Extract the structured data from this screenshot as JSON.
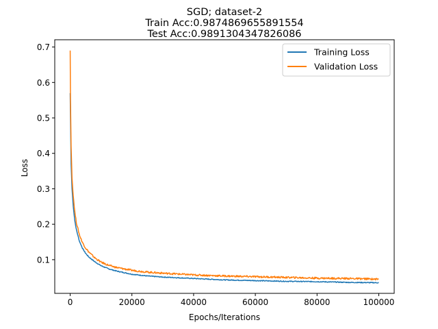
{
  "chart_data": {
    "type": "line",
    "title_lines": [
      "SGD; dataset-2",
      "Train Acc:0.9874869655891554",
      "Test Acc:0.9891304347826086"
    ],
    "xlabel": "Epochs/Iterations",
    "ylabel": "Loss",
    "xlim": [
      -5000,
      105000
    ],
    "ylim": [
      0.005,
      0.7205
    ],
    "xticks": [
      0,
      20000,
      40000,
      60000,
      80000,
      100000
    ],
    "xtick_labels": [
      "0",
      "20000",
      "40000",
      "60000",
      "80000",
      "100000"
    ],
    "yticks": [
      0.1,
      0.2,
      0.3,
      0.4,
      0.5,
      0.6,
      0.7
    ],
    "ytick_labels": [
      "0.1",
      "0.2",
      "0.3",
      "0.4",
      "0.5",
      "0.6",
      "0.7"
    ],
    "legend_position": "top-right",
    "grid": false,
    "series": [
      {
        "name": "Training Loss",
        "color": "#1f77b4",
        "x": [
          0,
          100,
          300,
          600,
          1000,
          1500,
          2000,
          3000,
          4000,
          5000,
          6000,
          8000,
          10000,
          12500,
          15000,
          20000,
          25000,
          30000,
          40000,
          50000,
          60000,
          70000,
          80000,
          90000,
          100000
        ],
        "y": [
          0.57,
          0.5,
          0.37,
          0.3,
          0.25,
          0.21,
          0.185,
          0.152,
          0.132,
          0.118,
          0.108,
          0.094,
          0.083,
          0.074,
          0.068,
          0.059,
          0.054,
          0.051,
          0.047,
          0.043,
          0.041,
          0.039,
          0.038,
          0.036,
          0.035
        ]
      },
      {
        "name": "Validation Loss",
        "color": "#ff7f0e",
        "x": [
          0,
          100,
          300,
          600,
          1000,
          1500,
          2000,
          3000,
          4000,
          5000,
          6000,
          8000,
          10000,
          12500,
          15000,
          20000,
          25000,
          30000,
          40000,
          50000,
          60000,
          70000,
          80000,
          90000,
          100000
        ],
        "y": [
          0.69,
          0.55,
          0.42,
          0.33,
          0.28,
          0.235,
          0.205,
          0.17,
          0.148,
          0.133,
          0.122,
          0.105,
          0.093,
          0.084,
          0.078,
          0.07,
          0.065,
          0.062,
          0.057,
          0.054,
          0.052,
          0.05,
          0.048,
          0.047,
          0.045
        ]
      }
    ]
  }
}
